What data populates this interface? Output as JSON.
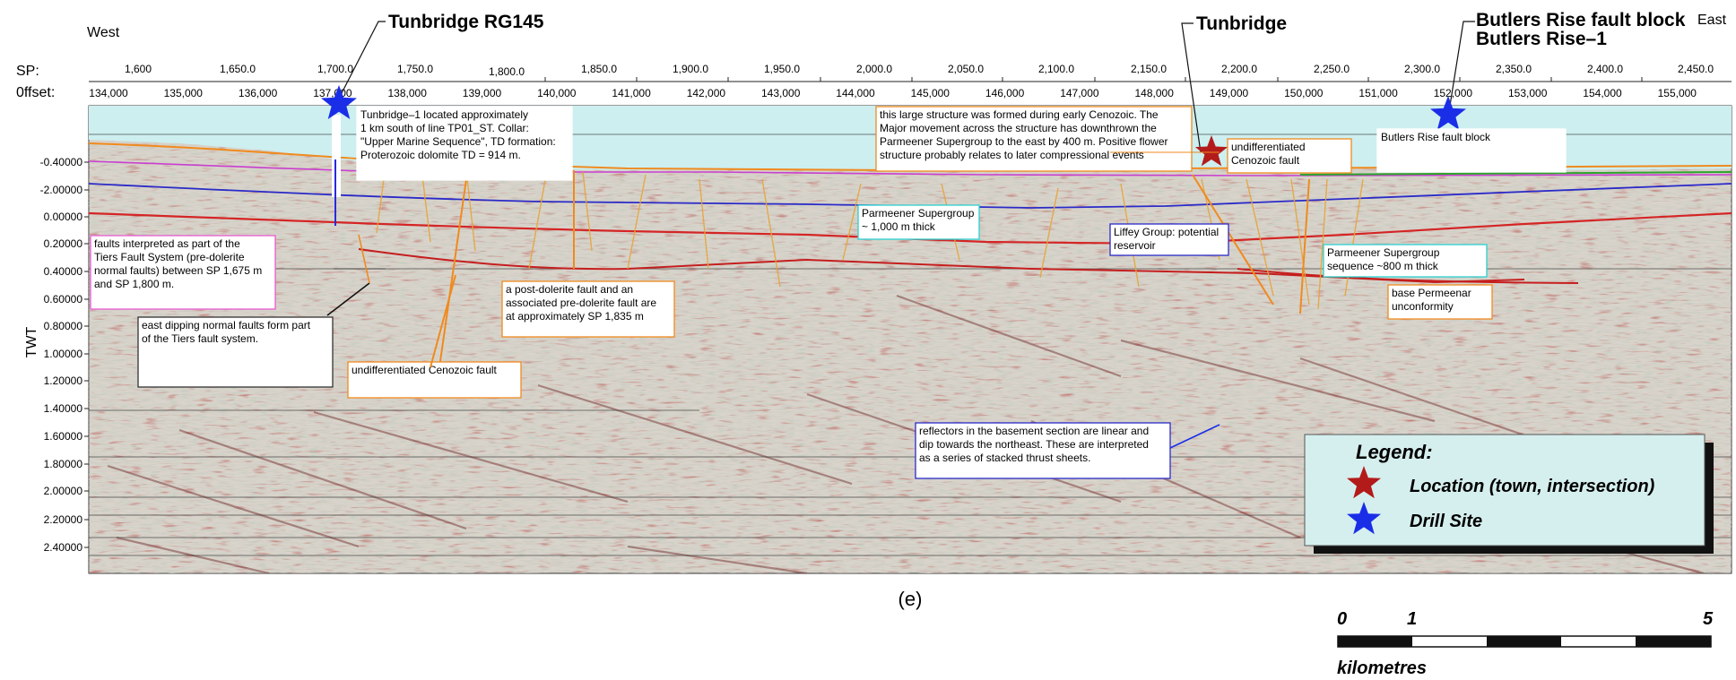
{
  "header": {
    "west": "West",
    "east": "East",
    "sp_label": "SP:",
    "offset_label": "0ffset:",
    "sp_ticks": [
      "1,600",
      "1,650.0",
      "1,700.0",
      "1,750.0",
      "1,800.0",
      "1,850.0",
      "1,900.0",
      "1,950.0",
      "2,000.0",
      "2,050.0",
      "2,100.0",
      "2,150.0",
      "2,200.0",
      "2,250.0",
      "2,300.0",
      "2,350.0",
      "2,400.0",
      "2,450.0"
    ],
    "offset_ticks": [
      "134,000",
      "135,000",
      "136,000",
      "137,000",
      "138,000",
      "139,000",
      "140,000",
      "141,000",
      "142,000",
      "143,000",
      "144,000",
      "145,000",
      "146,000",
      "147,000",
      "148,000",
      "149,000",
      "150,000",
      "151,000",
      "152,000",
      "153,000",
      "154,000",
      "155,000"
    ]
  },
  "site_labels": {
    "tunbridge_rg145": "Tunbridge RG145",
    "tunbridge": "Tunbridge",
    "butlers_block": "Butlers Rise fault block",
    "butlers_well": "Butlers Rise–1"
  },
  "axis": {
    "ylabel": "TWT",
    "ticks": [
      "-0.40000",
      "-2.00000",
      "0.00000",
      "0.20000",
      "0.40000",
      "0.60000",
      "0.80000",
      "1.00000",
      "1.20000",
      "1.40000",
      "1.60000",
      "1.80000",
      "2.00000",
      "2.20000",
      "2.40000"
    ]
  },
  "annotations": {
    "tunbridge1": [
      "Tunbridge–1 located approximately",
      "1 km south of line TP01_ST.  Collar:",
      "\"Upper Marine Sequence\", TD formation:",
      "Proterozoic dolomite TD = 914 m."
    ],
    "structure": [
      "this large structure was formed during early Cenozoic. The",
      "Major movement across the structure has downthrown the",
      "Parmeener Supergroup to the east by 400 m. Positive flower",
      "structure probably relates to later compressional events"
    ],
    "undiff_top": [
      "undifferentiated",
      "Cenozoic fault"
    ],
    "butlers_block": [
      "Butlers Rise fault block"
    ],
    "parmeener1000": [
      "Parmeener Supergroup",
      "~ 1,000 m thick"
    ],
    "liffey": [
      "Liffey Group:  potential",
      "reservoir"
    ],
    "parmeener800": [
      "Parmeener Supergroup",
      "sequence ~800 m thick"
    ],
    "base_perm": [
      "base Permeenar",
      "unconformity"
    ],
    "tiers": [
      "faults interpreted as part of the",
      "Tiers Fault System (pre-dolerite",
      "normal faults) between SP 1,675 m",
      "and SP 1,800 m."
    ],
    "east_dipping": [
      "east dipping normal faults form part",
      "of the Tiers fault system."
    ],
    "post_dolerite": [
      "a post-dolerite fault and an",
      "associated pre-dolerite fault are",
      "at approximately SP 1,835 m"
    ],
    "undiff_mid": [
      "undifferentiated Cenozoic fault"
    ],
    "reflectors": [
      "reflectors in the basement section are linear and",
      "dip towards the northeast. These are interpreted",
      "as a series of stacked thrust sheets."
    ]
  },
  "legend": {
    "title": "Legend:",
    "items": [
      {
        "label": "Location (town, intersection)",
        "color": "#b31b1b"
      },
      {
        "label": "Drill Site",
        "color": "#1a2ee8"
      }
    ]
  },
  "caption": "(e)",
  "scale": {
    "ticks": [
      "0",
      "1",
      "5"
    ],
    "unit": "kilometres"
  }
}
